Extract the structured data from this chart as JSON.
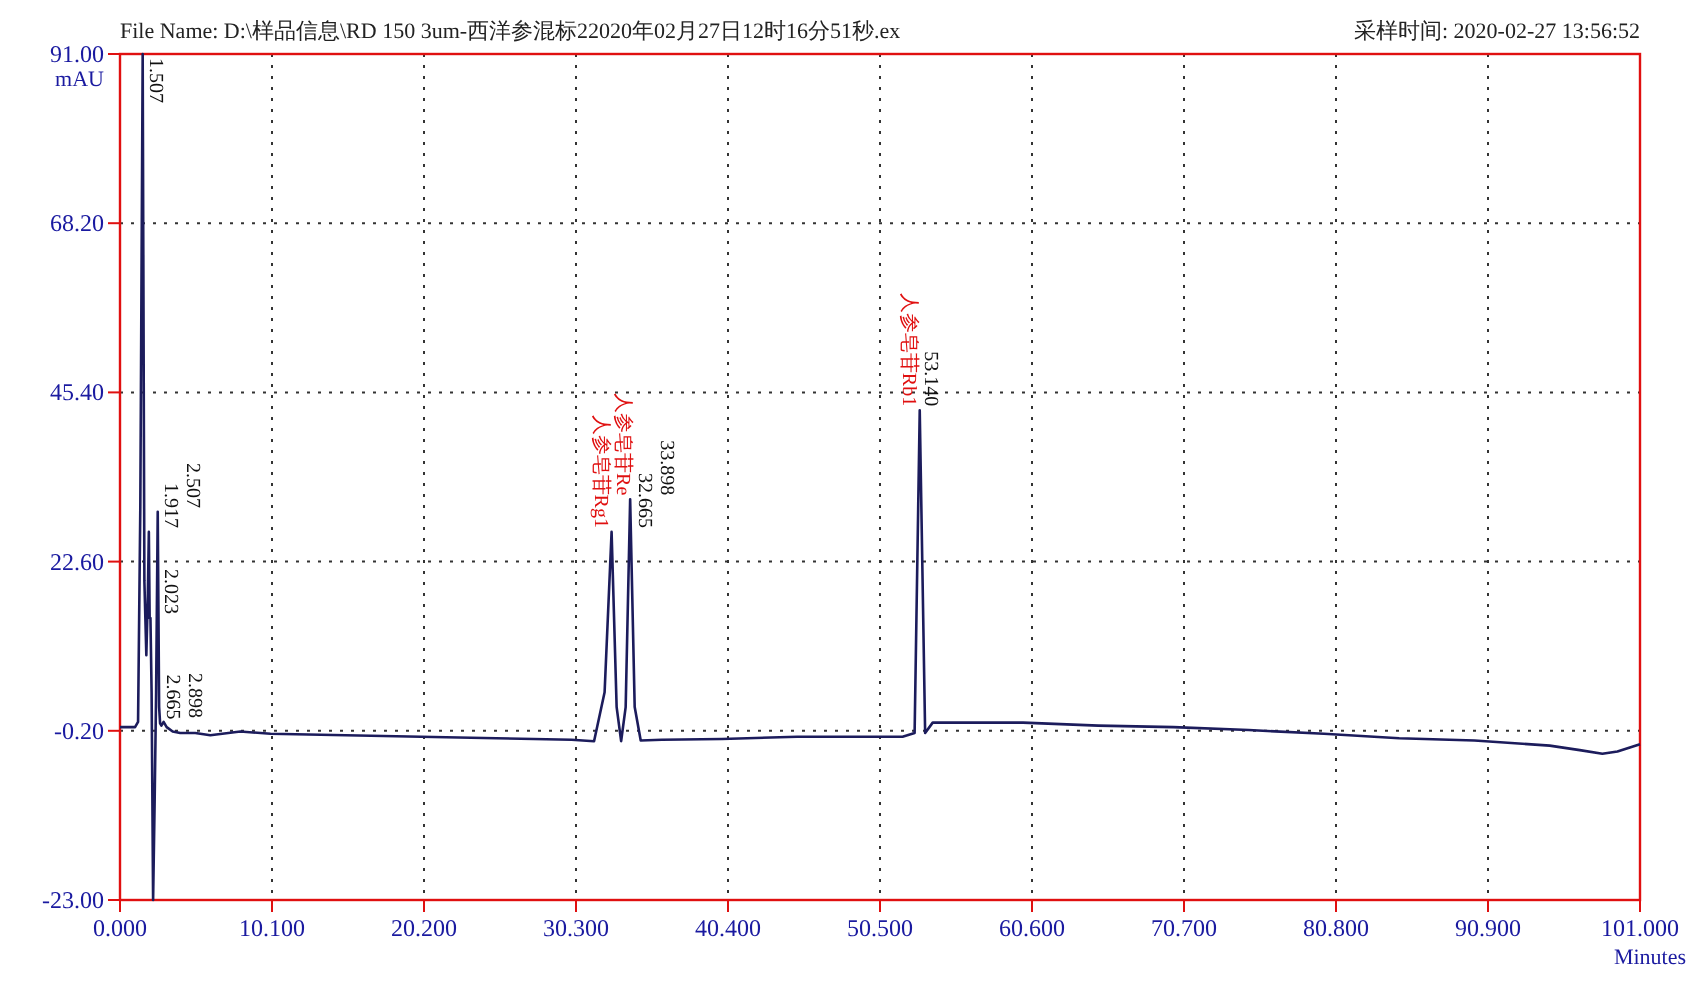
{
  "chart_data": {
    "type": "line",
    "title": "File Name: D:\\样品信息\\RD 150 3um-西洋参混标22020年02月27日12时16分51秒.ex",
    "subtitle": "采样时间: 2020-02-27 13:56:52",
    "xlabel": "Minutes",
    "ylabel": "mAU",
    "series": [
      {
        "color": "#1c1c5c",
        "x": [
          0,
          0.5,
          1.0,
          1.2,
          1.35,
          1.507,
          1.62,
          1.75,
          1.85,
          1.917,
          1.97,
          2.023,
          2.1,
          2.2,
          2.3,
          2.4,
          2.507,
          2.6,
          2.665,
          2.75,
          2.898,
          3.1,
          3.5,
          4.0,
          5.0,
          6.0,
          8.0,
          10.0,
          15.0,
          20.0,
          25.0,
          30.0,
          31.5,
          32.2,
          32.665,
          33.0,
          33.3,
          33.6,
          33.898,
          34.2,
          34.6,
          36.0,
          40.0,
          45.0,
          50.0,
          52.0,
          52.8,
          53.14,
          53.5,
          54.0,
          56.0,
          60.0,
          65.0,
          70.0,
          75.0,
          80.0,
          85.0,
          90.0,
          95.0,
          97.0,
          98.5,
          99.5,
          101.0
        ],
        "values": [
          0.3,
          0.3,
          0.3,
          1.0,
          30.0,
          91.0,
          20.0,
          10.0,
          18.0,
          26.6,
          15.0,
          15.0,
          5.0,
          -23.0,
          -10.0,
          5.0,
          29.3,
          3.0,
          0.8,
          0.5,
          1.0,
          0.3,
          -0.3,
          -0.5,
          -0.5,
          -0.8,
          -0.3,
          -0.6,
          -0.8,
          -1.0,
          -1.2,
          -1.4,
          -1.6,
          5.0,
          26.6,
          3.0,
          -1.6,
          3.0,
          31.0,
          3.0,
          -1.5,
          -1.4,
          -1.3,
          -1.0,
          -1.0,
          -1.0,
          -0.5,
          43.0,
          -0.5,
          0.9,
          0.9,
          0.9,
          0.5,
          0.3,
          -0.1,
          -0.6,
          -1.2,
          -1.5,
          -2.2,
          -2.8,
          -3.3,
          -3.0,
          -2.0
        ]
      }
    ],
    "xlim": [
      0,
      101
    ],
    "xticks": [
      {
        "value": 0,
        "label": "0.000"
      },
      {
        "value": 10.1,
        "label": "10.100"
      },
      {
        "value": 20.2,
        "label": "20.200"
      },
      {
        "value": 30.3,
        "label": "30.300"
      },
      {
        "value": 40.4,
        "label": "40.400"
      },
      {
        "value": 50.5,
        "label": "50.500"
      },
      {
        "value": 60.6,
        "label": "60.600"
      },
      {
        "value": 70.7,
        "label": "70.700"
      },
      {
        "value": 80.8,
        "label": "80.800"
      },
      {
        "value": 90.9,
        "label": "90.900"
      },
      {
        "value": 101,
        "label": "101.000"
      }
    ],
    "ylim": [
      -23,
      91
    ],
    "yticks": [
      {
        "value": -23,
        "label": "-23.00"
      },
      {
        "value": -0.2,
        "label": "-0.20"
      },
      {
        "value": 22.6,
        "label": "22.60"
      },
      {
        "value": 45.4,
        "label": "45.40"
      },
      {
        "value": 68.2,
        "label": "68.20"
      },
      {
        "value": 91,
        "label": "91.00"
      }
    ],
    "grid": true,
    "marker": "none",
    "line_style": "solid",
    "annotations": [
      {
        "text": "1.507",
        "x": 1.507,
        "y": 91
      },
      {
        "text": "1.917",
        "x": 1.917,
        "y": 26.6
      },
      {
        "text": "2.023",
        "x": 2.023,
        "y": 15
      },
      {
        "text": "2.507",
        "x": 2.507,
        "y": 29.3
      },
      {
        "text": "2.665",
        "x": 2.665,
        "y": 0.8
      },
      {
        "text": "2.898",
        "x": 2.898,
        "y": 1
      },
      {
        "text": "人参皂苷Rg1",
        "x": 32.665,
        "y": 26.6
      },
      {
        "text": "32.665",
        "x": 32.665,
        "y": 26.6
      },
      {
        "text": "人参皂苷Re",
        "x": 33.898,
        "y": 31
      },
      {
        "text": "33.898",
        "x": 33.898,
        "y": 31
      },
      {
        "text": "人参皂苷Rb1",
        "x": 53.14,
        "y": 43
      },
      {
        "text": "53.140",
        "x": 53.14,
        "y": 43
      }
    ]
  }
}
